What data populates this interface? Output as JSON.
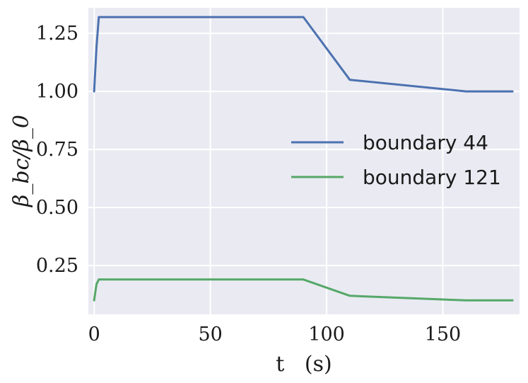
{
  "chart_data": {
    "type": "line",
    "xlabel": "t   (s)",
    "ylabel": "β_bc/β_0",
    "xlim": [
      -2.5,
      183
    ],
    "ylim": [
      0.04,
      1.36
    ],
    "x_ticks": [
      0,
      50,
      100,
      150
    ],
    "x_tick_labels": [
      "0",
      "50",
      "100",
      "150"
    ],
    "y_ticks": [
      0.25,
      0.5,
      0.75,
      1.0,
      1.25
    ],
    "y_tick_labels": [
      "0.25",
      "0.50",
      "0.75",
      "1.00",
      "1.25"
    ],
    "grid": true,
    "legend_position": "center-right",
    "background": "#eaeaf2",
    "series": [
      {
        "name": "boundary 44",
        "color": "#4c72b0",
        "x": [
          0,
          1,
          2,
          90,
          110,
          160,
          180
        ],
        "y": [
          1.0,
          1.19,
          1.32,
          1.32,
          1.05,
          1.0,
          1.0
        ]
      },
      {
        "name": "boundary 121",
        "color": "#55a868",
        "x": [
          0,
          1,
          2,
          90,
          110,
          160,
          180
        ],
        "y": [
          0.1,
          0.17,
          0.19,
          0.19,
          0.12,
          0.1,
          0.1
        ]
      }
    ]
  }
}
